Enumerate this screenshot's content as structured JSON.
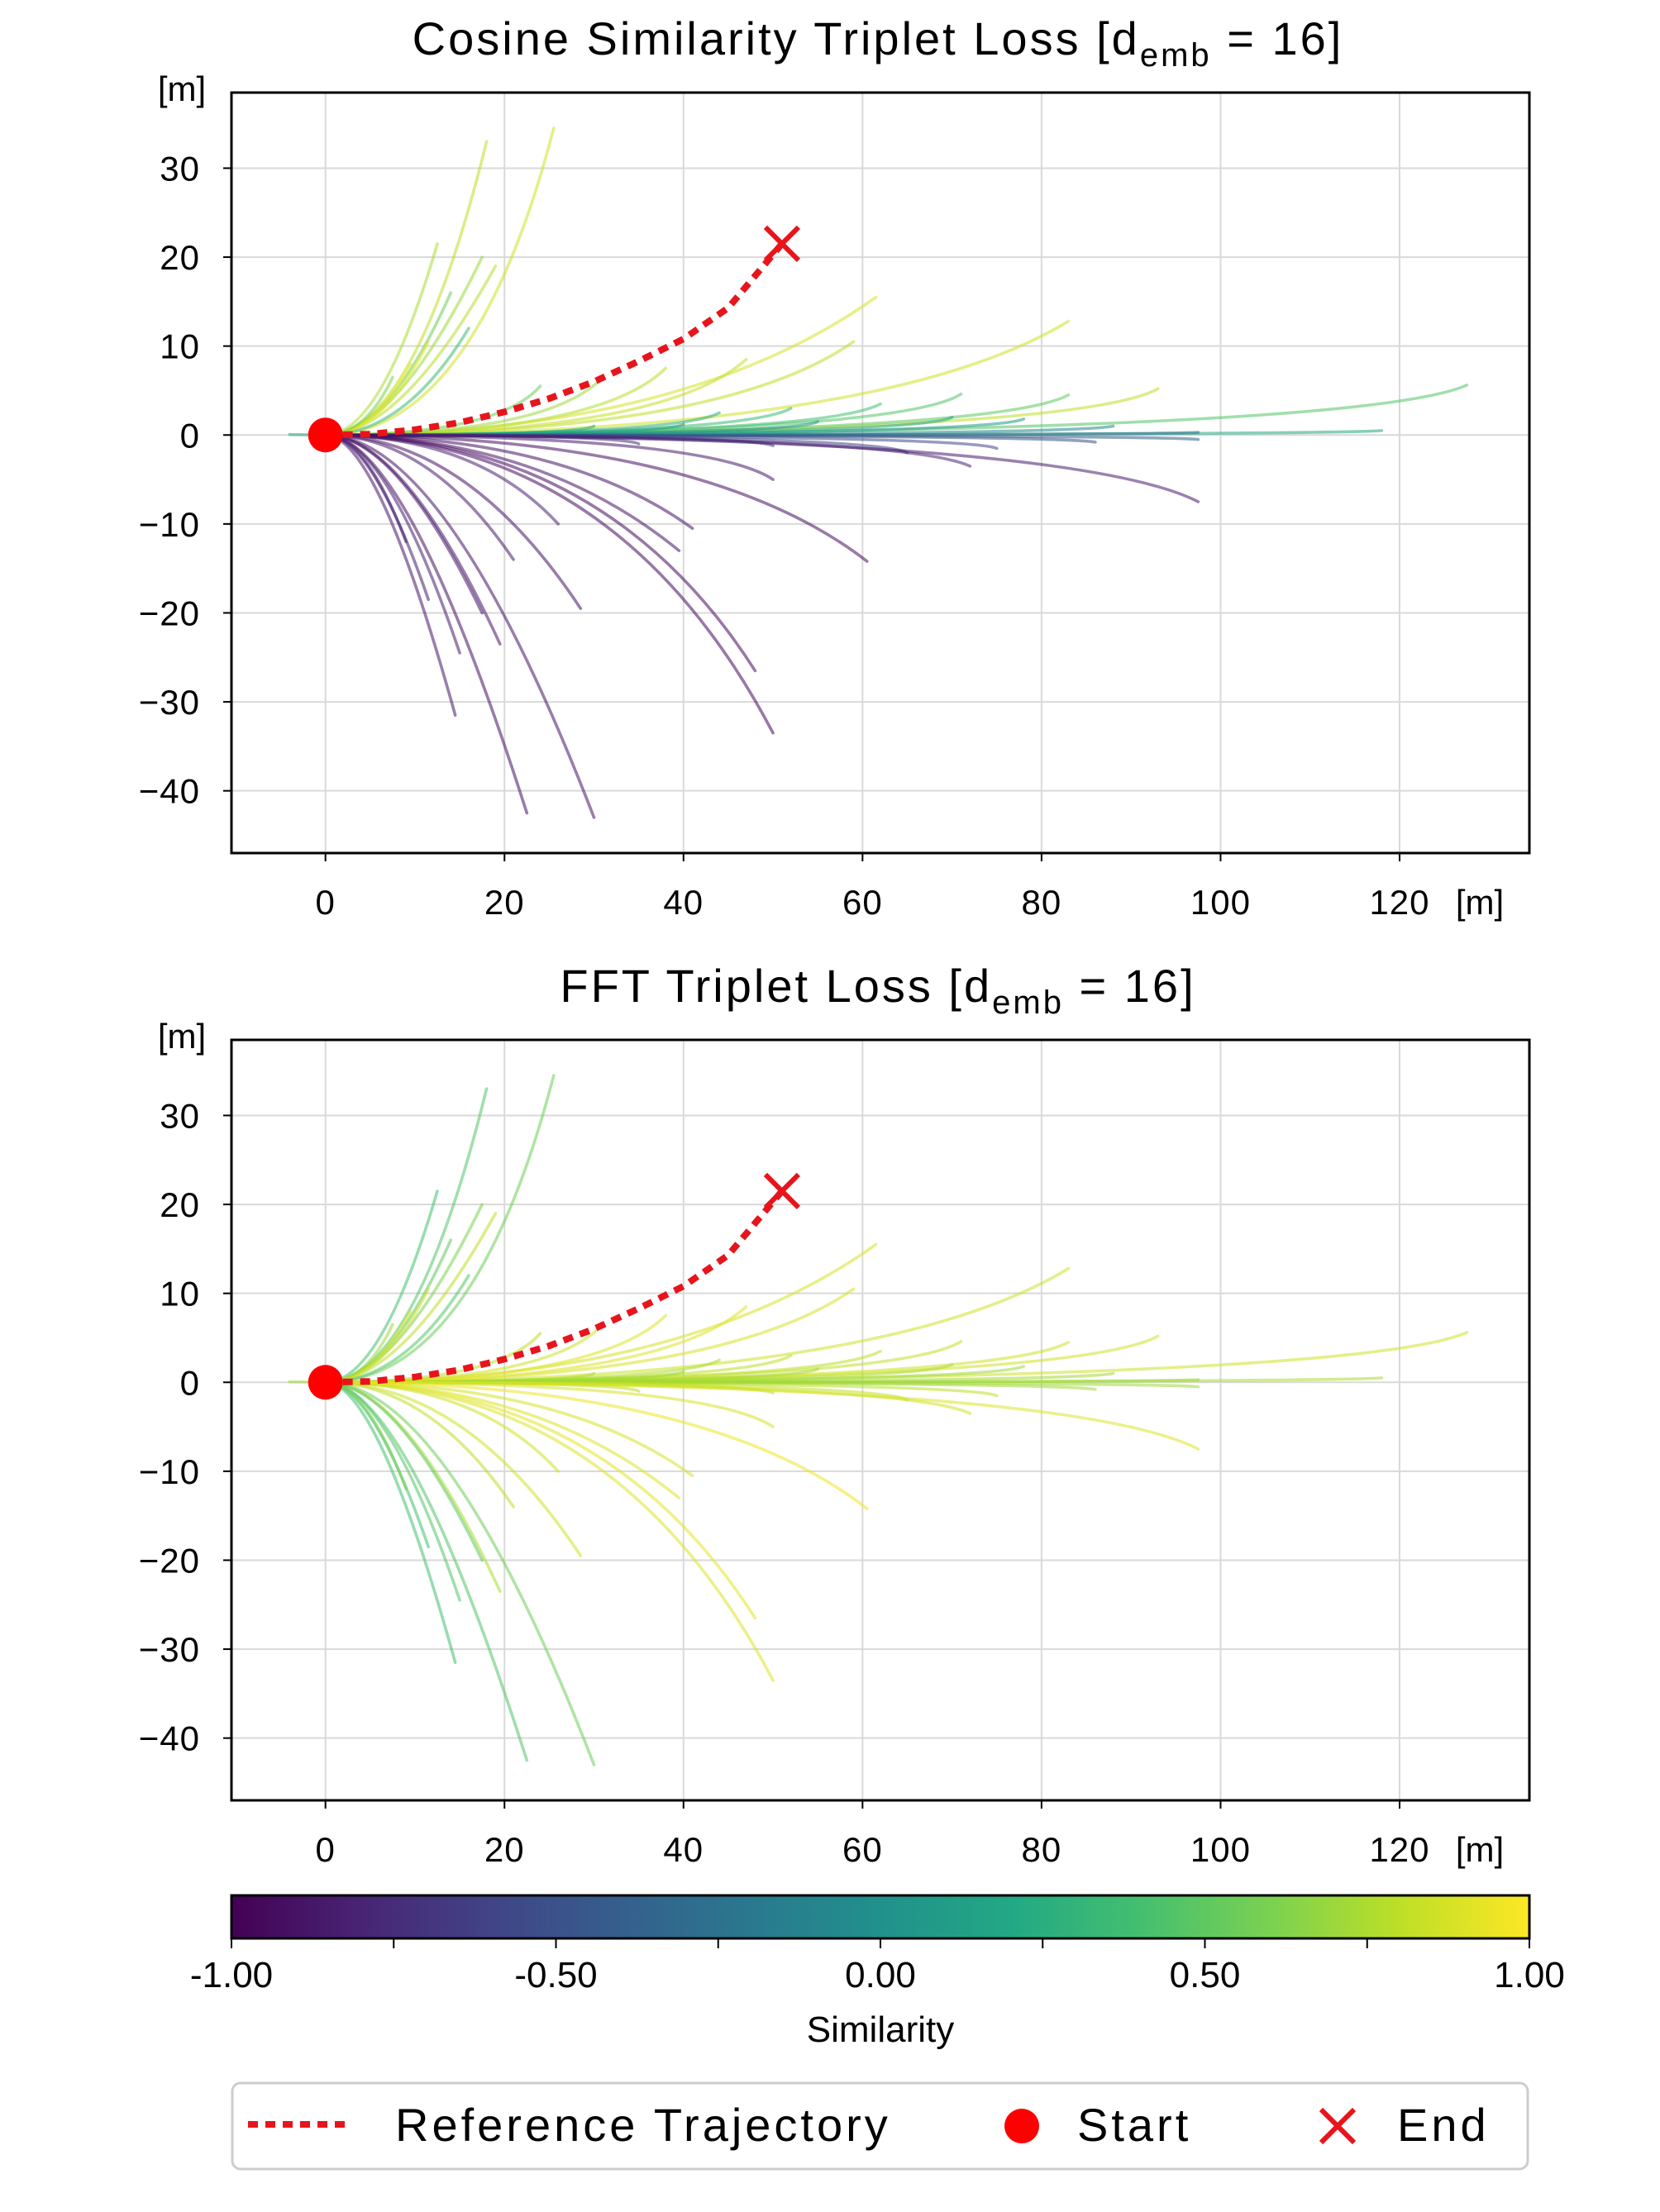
{
  "colors": {
    "reference": "#e8141c",
    "start": "#ff0000",
    "end": "#e8141c",
    "frame": "#000000",
    "grid": "#d9d9d9",
    "viridis": [
      "#440154",
      "#482475",
      "#414487",
      "#355f8d",
      "#2a788e",
      "#21918c",
      "#22a884",
      "#44bf70",
      "#7ad151",
      "#bddf26",
      "#fde725"
    ]
  },
  "chart_data": [
    {
      "type": "line",
      "title_main": "Cosine Similarity Triplet Loss [d",
      "title_sub": "emb",
      "title_tail": " = 16]",
      "xlabel": "[m]",
      "ylabel": "[m]",
      "xlim": [
        -10.5,
        134.5
      ],
      "ylim": [
        -47,
        38.5
      ],
      "xticks": [
        0,
        20,
        40,
        60,
        80,
        100,
        120
      ],
      "yticks": [
        30,
        20,
        10,
        0,
        -10,
        -20,
        -30,
        -40
      ],
      "grid": true
    },
    {
      "type": "line",
      "title_main": "FFT Triplet Loss [d",
      "title_sub": "emb",
      "title_tail": " = 16]",
      "xlabel": "[m]",
      "ylabel": "[m]",
      "xlim": [
        -10.5,
        134.5
      ],
      "ylim": [
        -47,
        38.5
      ],
      "xticks": [
        0,
        20,
        40,
        60,
        80,
        100,
        120
      ],
      "yticks": [
        30,
        20,
        10,
        0,
        -10,
        -20,
        -30,
        -40
      ],
      "grid": true
    }
  ],
  "reference": {
    "label": "Reference Trajectory",
    "points": [
      [
        0,
        0
      ],
      [
        5,
        0.1
      ],
      [
        10,
        0.6
      ],
      [
        15,
        1.4
      ],
      [
        20,
        2.6
      ],
      [
        25,
        4.1
      ],
      [
        30,
        6.0
      ],
      [
        35,
        8.3
      ],
      [
        40,
        10.8
      ],
      [
        45,
        14.3
      ],
      [
        51,
        21.5
      ]
    ],
    "start": [
      0,
      0
    ],
    "end": [
      51,
      21.5
    ]
  },
  "trajectories": [
    {
      "end": [
        25.5,
        34.5
      ],
      "bend": 0.35,
      "sim_a": 0.85,
      "sim_b": 0.55
    },
    {
      "end": [
        18,
        33
      ],
      "bend": 0.45,
      "sim_a": 0.8,
      "sim_b": 0.45
    },
    {
      "end": [
        12.5,
        21.5
      ],
      "bend": 0.5,
      "sim_a": 0.75,
      "sim_b": 0.4
    },
    {
      "end": [
        17.5,
        20
      ],
      "bend": 0.55,
      "sim_a": 0.7,
      "sim_b": 0.6
    },
    {
      "end": [
        14,
        16
      ],
      "bend": 0.5,
      "sim_a": 0.55,
      "sim_b": 0.5
    },
    {
      "end": [
        19,
        19
      ],
      "bend": 0.55,
      "sim_a": 0.78,
      "sim_b": 0.8
    },
    {
      "end": [
        16,
        12
      ],
      "bend": 0.45,
      "sim_a": 0.35,
      "sim_b": 0.45
    },
    {
      "end": [
        11.5,
        10.5
      ],
      "bend": 0.45,
      "sim_a": 0.9,
      "sim_b": 0.85
    },
    {
      "end": [
        9.5,
        8
      ],
      "bend": 0.45,
      "sim_a": 0.95,
      "sim_b": 0.9
    },
    {
      "end": [
        7.5,
        6.5
      ],
      "bend": 0.4,
      "sim_a": 0.6,
      "sim_b": 0.7
    },
    {
      "end": [
        61.5,
        15.5
      ],
      "bend": 0.35,
      "sim_a": 0.88,
      "sim_b": 0.88
    },
    {
      "end": [
        83,
        12.8
      ],
      "bend": 0.25,
      "sim_a": 0.85,
      "sim_b": 0.85
    },
    {
      "end": [
        59,
        10.5
      ],
      "bend": 0.25,
      "sim_a": 0.8,
      "sim_b": 0.88
    },
    {
      "end": [
        47,
        8.5
      ],
      "bend": 0.2,
      "sim_a": 0.82,
      "sim_b": 0.9
    },
    {
      "end": [
        38,
        7.5
      ],
      "bend": 0.2,
      "sim_a": 0.78,
      "sim_b": 0.9
    },
    {
      "end": [
        31,
        6.5
      ],
      "bend": 0.2,
      "sim_a": 0.7,
      "sim_b": 0.85
    },
    {
      "end": [
        24,
        5.5
      ],
      "bend": 0.2,
      "sim_a": 0.55,
      "sim_b": 0.8
    },
    {
      "end": [
        127.5,
        5.6
      ],
      "bend": 0.1,
      "sim_a": 0.45,
      "sim_b": 0.85
    },
    {
      "end": [
        93,
        5.2
      ],
      "bend": 0.1,
      "sim_a": 0.8,
      "sim_b": 0.85
    },
    {
      "end": [
        83,
        4.5
      ],
      "bend": 0.1,
      "sim_a": 0.5,
      "sim_b": 0.85
    },
    {
      "end": [
        71,
        4.6
      ],
      "bend": 0.1,
      "sim_a": 0.45,
      "sim_b": 0.82
    },
    {
      "end": [
        62,
        3.5
      ],
      "bend": 0.1,
      "sim_a": 0.4,
      "sim_b": 0.8
    },
    {
      "end": [
        52,
        3.0
      ],
      "bend": 0.1,
      "sim_a": 0.35,
      "sim_b": 0.8
    },
    {
      "end": [
        44,
        2.5
      ],
      "bend": 0.1,
      "sim_a": 0.25,
      "sim_b": 0.75
    },
    {
      "end": [
        118,
        0.5
      ],
      "bend": 0.05,
      "sim_a": 0.2,
      "sim_b": 0.75
    },
    {
      "end": [
        97.5,
        0.3
      ],
      "bend": 0.05,
      "sim_a": -0.25,
      "sim_b": 0.7
    },
    {
      "end": [
        88,
        1.0
      ],
      "bend": 0.05,
      "sim_a": -0.1,
      "sim_b": 0.72
    },
    {
      "end": [
        78,
        1.8
      ],
      "bend": 0.05,
      "sim_a": 0.05,
      "sim_b": 0.7
    },
    {
      "end": [
        70,
        2.0
      ],
      "bend": 0.05,
      "sim_a": 0.15,
      "sim_b": 0.75
    },
    {
      "end": [
        55,
        1.5
      ],
      "bend": 0.05,
      "sim_a": 0.0,
      "sim_b": 0.72
    },
    {
      "end": [
        40,
        1.2
      ],
      "bend": 0.05,
      "sim_a": 0.1,
      "sim_b": 0.7
    },
    {
      "end": [
        30,
        1.0
      ],
      "bend": 0.05,
      "sim_a": 0.2,
      "sim_b": 0.75
    },
    {
      "end": [
        97.5,
        -0.5
      ],
      "bend": 0.05,
      "sim_a": -0.4,
      "sim_b": 0.7
    },
    {
      "end": [
        86,
        -0.8
      ],
      "bend": 0.05,
      "sim_a": -0.5,
      "sim_b": 0.72
    },
    {
      "end": [
        75,
        -1.5
      ],
      "bend": 0.05,
      "sim_a": -0.55,
      "sim_b": 0.8
    },
    {
      "end": [
        65,
        -2.0
      ],
      "bend": 0.05,
      "sim_a": -0.6,
      "sim_b": 0.82
    },
    {
      "end": [
        50,
        -1.2
      ],
      "bend": 0.05,
      "sim_a": -0.65,
      "sim_b": 0.8
    },
    {
      "end": [
        35,
        -1.0
      ],
      "bend": 0.05,
      "sim_a": -0.7,
      "sim_b": 0.78
    },
    {
      "end": [
        97.5,
        -7.5
      ],
      "bend": 0.15,
      "sim_a": -0.85,
      "sim_b": 0.9
    },
    {
      "end": [
        72,
        -3.5
      ],
      "bend": 0.1,
      "sim_a": -0.8,
      "sim_b": 0.85
    },
    {
      "end": [
        50,
        -5.0
      ],
      "bend": 0.15,
      "sim_a": -0.85,
      "sim_b": 0.88
    },
    {
      "end": [
        41,
        -10.5
      ],
      "bend": 0.35,
      "sim_a": -0.9,
      "sim_b": 0.88
    },
    {
      "end": [
        39.5,
        -13
      ],
      "bend": 0.4,
      "sim_a": -0.9,
      "sim_b": 0.9
    },
    {
      "end": [
        60.5,
        -14.2
      ],
      "bend": 0.3,
      "sim_a": -0.92,
      "sim_b": 0.95
    },
    {
      "end": [
        48,
        -26.5
      ],
      "bend": 0.35,
      "sim_a": -0.95,
      "sim_b": 0.92
    },
    {
      "end": [
        50,
        -33.5
      ],
      "bend": 0.35,
      "sim_a": -0.95,
      "sim_b": 0.9
    },
    {
      "end": [
        28.5,
        -19.5
      ],
      "bend": 0.45,
      "sim_a": -0.9,
      "sim_b": 0.85
    },
    {
      "end": [
        30,
        -43
      ],
      "bend": 0.55,
      "sim_a": -0.9,
      "sim_b": 0.55
    },
    {
      "end": [
        22.5,
        -42.5
      ],
      "bend": 0.6,
      "sim_a": -0.92,
      "sim_b": 0.45
    },
    {
      "end": [
        19.5,
        -23.5
      ],
      "bend": 0.55,
      "sim_a": -0.88,
      "sim_b": 0.75
    },
    {
      "end": [
        17.5,
        -20
      ],
      "bend": 0.55,
      "sim_a": -0.9,
      "sim_b": 0.5
    },
    {
      "end": [
        15,
        -24.5
      ],
      "bend": 0.55,
      "sim_a": -0.85,
      "sim_b": 0.45
    },
    {
      "end": [
        14.5,
        -31.5
      ],
      "bend": 0.6,
      "sim_a": -0.88,
      "sim_b": 0.4
    },
    {
      "end": [
        11.5,
        -18.5
      ],
      "bend": 0.55,
      "sim_a": -0.85,
      "sim_b": 0.4
    },
    {
      "end": [
        9,
        -12
      ],
      "bend": 0.5,
      "sim_a": -0.8,
      "sim_b": 0.6
    },
    {
      "end": [
        21,
        -14
      ],
      "bend": 0.45,
      "sim_a": -0.85,
      "sim_b": 0.8
    },
    {
      "end": [
        26,
        -10
      ],
      "bend": 0.35,
      "sim_a": -0.82,
      "sim_b": 0.85
    }
  ],
  "colorbar": {
    "label": "Similarity",
    "ticks": [
      "-1.00",
      "-0.50",
      "0.00",
      "0.50",
      "1.00"
    ],
    "min": -1.0,
    "max": 1.0
  },
  "legend": {
    "reference": "Reference Trajectory",
    "start": "Start",
    "end": "End"
  }
}
